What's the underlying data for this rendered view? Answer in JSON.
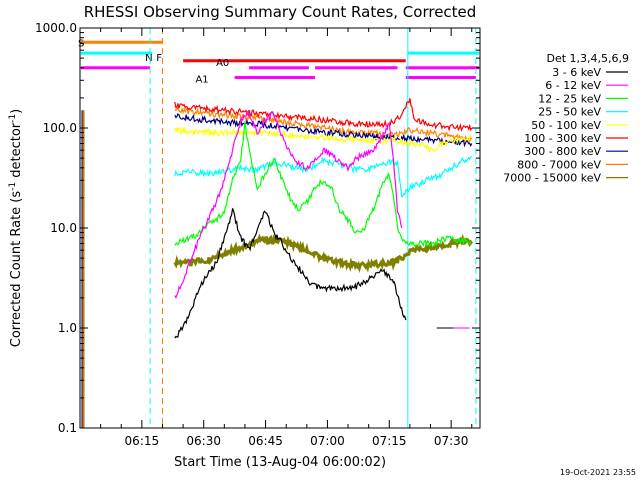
{
  "chart_data": {
    "type": "line",
    "title": "RHESSI Observing Summary Count Rates, Corrected",
    "xlabel": "Start Time (13-Aug-04 06:00:02)",
    "ylabel_main": "Corrected Count Rate (s",
    "ylabel_sup1": "-1",
    "ylabel_mid": " detector",
    "ylabel_sup2": "-1",
    "ylabel_end": ")",
    "y_scale": "log",
    "ylim": [
      0.1,
      1000
    ],
    "xlim_minutes": [
      0,
      97
    ],
    "y_ticks": [
      {
        "value": 0.1,
        "label": "0.1"
      },
      {
        "value": 1,
        "label": "1.0"
      },
      {
        "value": 10,
        "label": "10.0"
      },
      {
        "value": 100,
        "label": "100.0"
      },
      {
        "value": 1000,
        "label": "1000.0"
      }
    ],
    "x_ticks": [
      {
        "minute": 15,
        "label": "06:15"
      },
      {
        "minute": 30,
        "label": "06:30"
      },
      {
        "minute": 45,
        "label": "06:45"
      },
      {
        "minute": 60,
        "label": "07:00"
      },
      {
        "minute": 75,
        "label": "07:15"
      },
      {
        "minute": 90,
        "label": "07:30"
      }
    ],
    "legend_title": "Det 1,3,4,5,6,9",
    "legend_placement": "right",
    "series": [
      {
        "name": "3 - 6 keV",
        "color": "#000000",
        "points": [
          [
            23,
            0.8
          ],
          [
            25,
            1.0
          ],
          [
            27,
            1.5
          ],
          [
            29,
            2.5
          ],
          [
            31,
            3.5
          ],
          [
            33,
            4.5
          ],
          [
            35,
            8
          ],
          [
            37,
            15
          ],
          [
            39,
            8
          ],
          [
            41,
            6
          ],
          [
            43,
            10
          ],
          [
            45,
            15
          ],
          [
            47,
            9
          ],
          [
            49,
            7
          ],
          [
            51,
            5
          ],
          [
            53,
            4
          ],
          [
            55,
            3
          ],
          [
            58,
            2.5
          ],
          [
            62,
            2.5
          ],
          [
            66,
            2.5
          ],
          [
            70,
            3
          ],
          [
            73,
            4
          ],
          [
            76,
            3
          ],
          [
            78,
            1.5
          ],
          [
            79,
            1.2
          ]
        ]
      },
      {
        "name": "6 - 12 keV",
        "color": "#ff00ff",
        "points": [
          [
            23,
            2
          ],
          [
            25,
            3
          ],
          [
            27,
            5
          ],
          [
            29,
            8
          ],
          [
            31,
            12
          ],
          [
            33,
            18
          ],
          [
            35,
            30
          ],
          [
            37,
            60
          ],
          [
            39,
            120
          ],
          [
            41,
            140
          ],
          [
            43,
            90
          ],
          [
            45,
            120
          ],
          [
            47,
            140
          ],
          [
            49,
            80
          ],
          [
            51,
            55
          ],
          [
            53,
            45
          ],
          [
            55,
            40
          ],
          [
            57,
            50
          ],
          [
            59,
            60
          ],
          [
            61,
            55
          ],
          [
            63,
            45
          ],
          [
            65,
            40
          ],
          [
            67,
            50
          ],
          [
            69,
            55
          ],
          [
            71,
            60
          ],
          [
            73,
            80
          ],
          [
            75,
            110
          ],
          [
            76,
            50
          ],
          [
            77,
            15
          ],
          [
            78,
            10
          ]
        ]
      },
      {
        "name": "12 - 25 keV",
        "color": "#00ff00",
        "points": [
          [
            23,
            7
          ],
          [
            25,
            7.5
          ],
          [
            27,
            8
          ],
          [
            29,
            9
          ],
          [
            31,
            11
          ],
          [
            33,
            12
          ],
          [
            35,
            15
          ],
          [
            37,
            30
          ],
          [
            39,
            50
          ],
          [
            40,
            110
          ],
          [
            41,
            60
          ],
          [
            43,
            25
          ],
          [
            45,
            35
          ],
          [
            47,
            50
          ],
          [
            49,
            30
          ],
          [
            51,
            20
          ],
          [
            53,
            15
          ],
          [
            55,
            18
          ],
          [
            57,
            25
          ],
          [
            59,
            30
          ],
          [
            61,
            25
          ],
          [
            63,
            15
          ],
          [
            65,
            12
          ],
          [
            67,
            9
          ],
          [
            69,
            10
          ],
          [
            71,
            15
          ],
          [
            73,
            25
          ],
          [
            75,
            35
          ],
          [
            76,
            20
          ],
          [
            77,
            10
          ],
          [
            78,
            8
          ],
          [
            80,
            7
          ],
          [
            85,
            7
          ],
          [
            90,
            8
          ],
          [
            95,
            7
          ]
        ]
      },
      {
        "name": "25 - 50 keV",
        "color": "#00ffff",
        "points": [
          [
            23,
            35
          ],
          [
            27,
            36
          ],
          [
            31,
            35
          ],
          [
            35,
            37
          ],
          [
            39,
            40
          ],
          [
            43,
            38
          ],
          [
            47,
            45
          ],
          [
            51,
            42
          ],
          [
            55,
            38
          ],
          [
            59,
            48
          ],
          [
            63,
            42
          ],
          [
            67,
            38
          ],
          [
            71,
            40
          ],
          [
            75,
            45
          ],
          [
            77,
            45
          ],
          [
            78,
            20
          ],
          [
            80,
            25
          ],
          [
            84,
            30
          ],
          [
            88,
            35
          ],
          [
            92,
            45
          ],
          [
            95,
            52
          ]
        ]
      },
      {
        "name": "50 - 100 keV",
        "color": "#ffff00",
        "points": [
          [
            23,
            95
          ],
          [
            27,
            92
          ],
          [
            31,
            90
          ],
          [
            35,
            90
          ],
          [
            39,
            92
          ],
          [
            43,
            90
          ],
          [
            47,
            88
          ],
          [
            51,
            85
          ],
          [
            55,
            82
          ],
          [
            59,
            80
          ],
          [
            63,
            78
          ],
          [
            67,
            76
          ],
          [
            71,
            75
          ],
          [
            75,
            75
          ],
          [
            78,
            74
          ],
          [
            80,
            70
          ],
          [
            83,
            68
          ],
          [
            85,
            60
          ],
          [
            88,
            70
          ],
          [
            92,
            75
          ],
          [
            95,
            80
          ]
        ]
      },
      {
        "name": "100 - 300 keV",
        "color": "#ff0000",
        "points": [
          [
            23,
            170
          ],
          [
            27,
            160
          ],
          [
            31,
            155
          ],
          [
            35,
            150
          ],
          [
            39,
            145
          ],
          [
            43,
            140
          ],
          [
            47,
            135
          ],
          [
            51,
            130
          ],
          [
            55,
            125
          ],
          [
            59,
            120
          ],
          [
            63,
            115
          ],
          [
            67,
            110
          ],
          [
            71,
            108
          ],
          [
            75,
            110
          ],
          [
            78,
            130
          ],
          [
            80,
            200
          ],
          [
            81,
            120
          ],
          [
            84,
            110
          ],
          [
            88,
            105
          ],
          [
            92,
            100
          ],
          [
            95,
            100
          ]
        ]
      },
      {
        "name": "300 - 800 keV",
        "color": "#000080",
        "points": [
          [
            23,
            130
          ],
          [
            27,
            125
          ],
          [
            31,
            120
          ],
          [
            35,
            115
          ],
          [
            39,
            112
          ],
          [
            43,
            110
          ],
          [
            47,
            105
          ],
          [
            51,
            100
          ],
          [
            55,
            95
          ],
          [
            59,
            90
          ],
          [
            63,
            88
          ],
          [
            67,
            85
          ],
          [
            71,
            82
          ],
          [
            75,
            80
          ],
          [
            78,
            80
          ],
          [
            80,
            78
          ],
          [
            84,
            76
          ],
          [
            88,
            74
          ],
          [
            92,
            72
          ],
          [
            95,
            70
          ]
        ]
      },
      {
        "name": "800 - 7000 keV",
        "color": "#ff8000",
        "points": [
          [
            23,
            150
          ],
          [
            27,
            145
          ],
          [
            31,
            140
          ],
          [
            35,
            135
          ],
          [
            39,
            130
          ],
          [
            43,
            125
          ],
          [
            47,
            118
          ],
          [
            51,
            112
          ],
          [
            55,
            105
          ],
          [
            59,
            100
          ],
          [
            63,
            95
          ],
          [
            67,
            90
          ],
          [
            71,
            88
          ],
          [
            75,
            86
          ],
          [
            78,
            88
          ],
          [
            80,
            95
          ],
          [
            84,
            90
          ],
          [
            88,
            85
          ],
          [
            92,
            80
          ],
          [
            95,
            78
          ]
        ]
      },
      {
        "name": "7000 - 15000 keV",
        "color": "#808000",
        "points": [
          [
            23,
            4.5
          ],
          [
            27,
            4.5
          ],
          [
            31,
            4.8
          ],
          [
            35,
            5.5
          ],
          [
            39,
            6.5
          ],
          [
            43,
            7.5
          ],
          [
            47,
            7.5
          ],
          [
            51,
            7
          ],
          [
            55,
            6
          ],
          [
            59,
            5
          ],
          [
            63,
            4.5
          ],
          [
            67,
            4.2
          ],
          [
            71,
            4.3
          ],
          [
            75,
            4.5
          ],
          [
            76,
            4.5
          ],
          [
            78,
            5
          ],
          [
            81,
            6
          ],
          [
            85,
            6.5
          ],
          [
            89,
            7
          ],
          [
            93,
            7.5
          ],
          [
            95,
            7
          ]
        ]
      }
    ],
    "flag_bars": [
      {
        "label": "S",
        "color": "#ff8000",
        "level": 720,
        "segments": [
          [
            -1,
            20
          ]
        ]
      },
      {
        "label": "N",
        "color": "#00ffff",
        "level": 560,
        "segments": [
          [
            -1,
            17.5
          ],
          [
            79.5,
            97
          ]
        ]
      },
      {
        "label": "F",
        "color": "#ff0000",
        "level": 470,
        "segments": [
          [
            25,
            79
          ]
        ]
      },
      {
        "label": "A0",
        "color": "#ff00ff",
        "level": 400,
        "segments": [
          [
            -1,
            17
          ],
          [
            41,
            55.5
          ],
          [
            57,
            77
          ],
          [
            79,
            97
          ]
        ]
      },
      {
        "label": "A1",
        "color": "#ff00ff",
        "level": 320,
        "segments": [
          [
            37.5,
            57
          ],
          [
            79,
            96
          ]
        ]
      }
    ],
    "tail_segments": [
      {
        "color": "#ff00ff",
        "x0": 87.5,
        "x1": 94.5,
        "y": 1.0
      },
      {
        "color": "#000000",
        "x0": 86.5,
        "x1": 90.5,
        "y": 1.0
      }
    ],
    "vlines": [
      {
        "minute": 17,
        "color": "#00ffff",
        "dash": true
      },
      {
        "minute": 20,
        "color": "#ff8000",
        "dash": true
      },
      {
        "minute": 79.5,
        "color": "#00ffff",
        "dash": false
      },
      {
        "minute": 96,
        "color": "#00ffff",
        "dash": true
      }
    ],
    "early_spike_colors": [
      "#000000",
      "#ff00ff",
      "#00ff00",
      "#00ffff",
      "#ffff00",
      "#ff0000",
      "#000080",
      "#ff8000",
      "#808000"
    ],
    "footer_date": "19-Oct-2021 23:55"
  }
}
